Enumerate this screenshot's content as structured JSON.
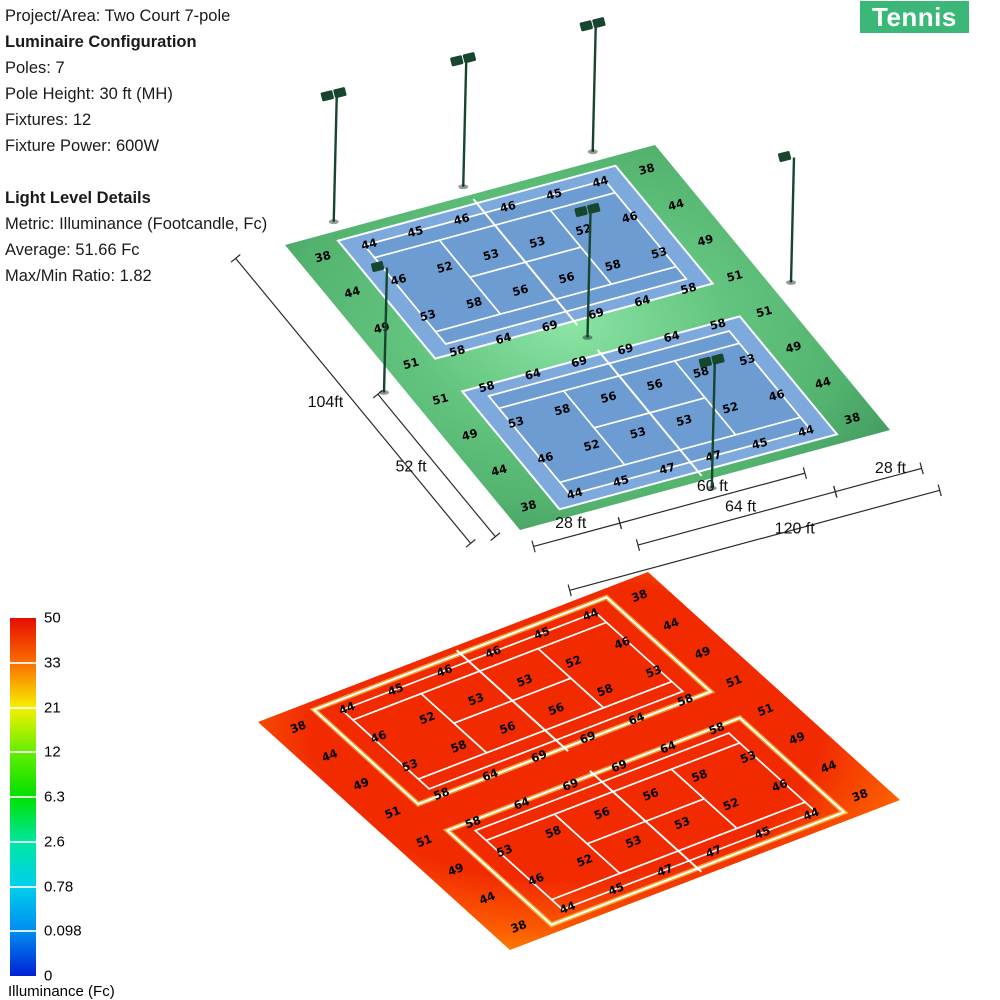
{
  "info_block": {
    "lines": [
      {
        "text": "Project/Area: Two Court 7-pole",
        "bold": false
      },
      {
        "text": "Luminaire Configuration",
        "bold": true
      },
      {
        "text": "Poles: 7",
        "bold": false
      },
      {
        "text": "Pole Height: 30 ft (MH)",
        "bold": false
      },
      {
        "text": "Fixtures: 12",
        "bold": false
      },
      {
        "text": "Fixture Power: 600W",
        "bold": false
      },
      {
        "text": "",
        "bold": false
      },
      {
        "text": "Light Level Details",
        "bold": true
      },
      {
        "text": "Metric: Illuminance (Footcandle, Fc)",
        "bold": false
      },
      {
        "text": "Average: 51.66 Fc",
        "bold": false
      },
      {
        "text": "Max/Min Ratio: 1.82",
        "bold": false
      }
    ]
  },
  "badge": {
    "label": "Tennis",
    "bg": "#3bb878"
  },
  "legend": {
    "title": "Illuminance (Fc)",
    "ticks": [
      "50",
      "33",
      "21",
      "12",
      "6.3",
      "2.6",
      "0.78",
      "0.098",
      "0"
    ],
    "colors": [
      "#e60d00",
      "#fb6d00",
      "#f5f100",
      "#64ee00",
      "#00e000",
      "#00e7a0",
      "#00cfee",
      "#008cf0",
      "#0021d6"
    ]
  },
  "dimensions": {
    "left_outer": "104ft",
    "left_inner": "52 ft",
    "bottom_left": "28 ft",
    "bottom_mid": "60 ft",
    "span_64": "64 ft",
    "right_margin": "28 ft",
    "total_length": "120 ft"
  },
  "colors": {
    "badge_green": "#3bb878",
    "field_green_light": "#8be4a4",
    "field_green": "#52b26e",
    "field_green_dark": "#3f955c",
    "court_blue": "#7da9dc",
    "court_blue_dark": "#6d9cd2",
    "line_white": "#ffffff",
    "pole_green": "#17462e",
    "heat_red": "#f12a00",
    "heat_orange": "#ff9400",
    "heat_yellow": "#ffe400",
    "dimension_black": "#2b2b2b",
    "value_text": "#000000"
  },
  "chart_data": {
    "type": "heatmap",
    "title": "Two Court 7-pole tennis lighting — illuminance grid",
    "unit": "Fc",
    "metric": "Illuminance (Footcandle, Fc)",
    "average": "51.66",
    "max_min_ratio": "1.82",
    "poles": 7,
    "pole_height": "30 ft (MH)",
    "fixtures": 12,
    "fixture_power": "600W",
    "area_ft": [
      120,
      104
    ],
    "grid_cols": 8,
    "grid_rows": 8,
    "col_spacing_ft": 15,
    "row_spacing_ft": 13,
    "values": [
      [
        38,
        44,
        45,
        46,
        46,
        45,
        44,
        38
      ],
      [
        44,
        46,
        52,
        53,
        53,
        52,
        46,
        44
      ],
      [
        49,
        53,
        58,
        56,
        56,
        58,
        53,
        49
      ],
      [
        51,
        58,
        64,
        69,
        69,
        64,
        58,
        51
      ],
      [
        51,
        58,
        64,
        69,
        69,
        64,
        58,
        51
      ],
      [
        49,
        53,
        58,
        56,
        56,
        58,
        53,
        49
      ],
      [
        44,
        46,
        52,
        53,
        53,
        52,
        46,
        44
      ],
      [
        38,
        44,
        45,
        47,
        47,
        45,
        44,
        38
      ]
    ],
    "legend_scale": [
      "50",
      "33",
      "21",
      "12",
      "6.3",
      "2.6",
      "0.78",
      "0.098",
      "0"
    ],
    "views": [
      "3d-luminaire-view",
      "illuminance-heatmap-view"
    ]
  }
}
